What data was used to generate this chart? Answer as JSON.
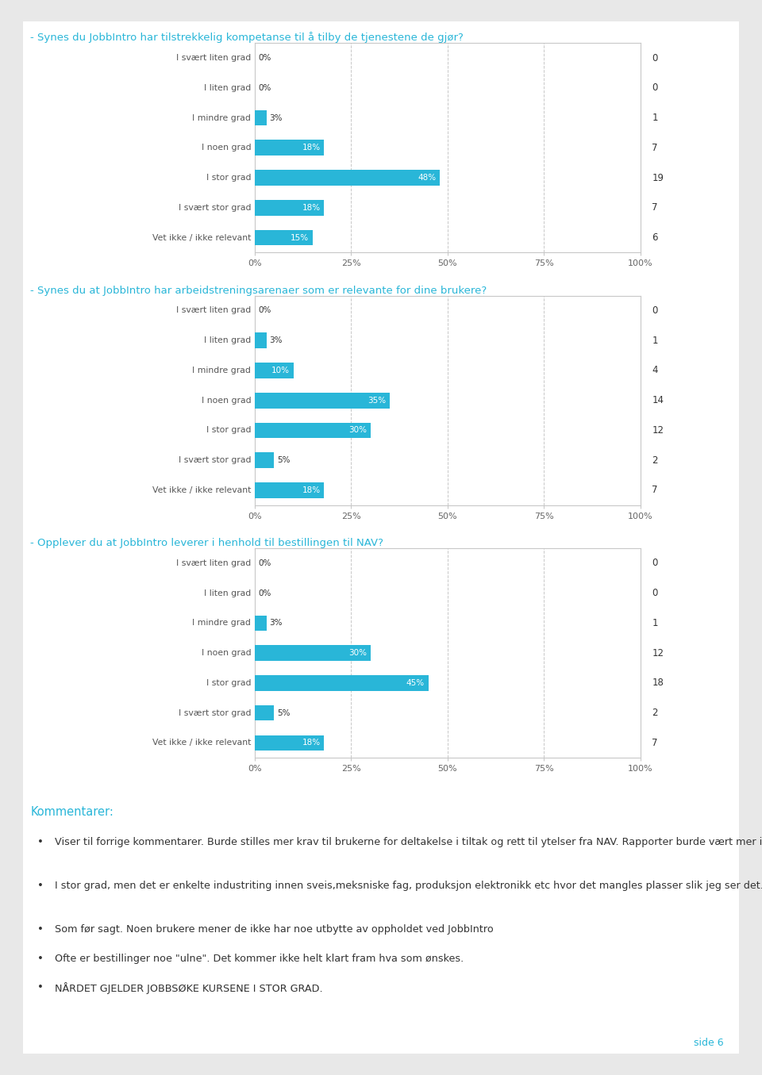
{
  "chart1": {
    "title": "- Synes du JobbIntro har tilstrekkelig kompetanse til å tilby de tjenestene de gjør?",
    "categories": [
      "I svært liten grad",
      "I liten grad",
      "I mindre grad",
      "I noen grad",
      "I stor grad",
      "I svært stor grad",
      "Vet ikke / ikke relevant"
    ],
    "values": [
      0,
      0,
      3,
      18,
      48,
      18,
      15
    ],
    "counts": [
      0,
      0,
      1,
      7,
      19,
      7,
      6
    ]
  },
  "chart2": {
    "title": "- Synes du at JobbIntro har arbeidstreningsarenaer som er relevante for dine brukere?",
    "categories": [
      "I svært liten grad",
      "I liten grad",
      "I mindre grad",
      "I noen grad",
      "I stor grad",
      "I svært stor grad",
      "Vet ikke / ikke relevant"
    ],
    "values": [
      0,
      3,
      10,
      35,
      30,
      5,
      18
    ],
    "counts": [
      0,
      1,
      4,
      14,
      12,
      2,
      7
    ]
  },
  "chart3": {
    "title": "- Opplever du at JobbIntro leverer i henhold til bestillingen til NAV?",
    "categories": [
      "I svært liten grad",
      "I liten grad",
      "I mindre grad",
      "I noen grad",
      "I stor grad",
      "I svært stor grad",
      "Vet ikke / ikke relevant"
    ],
    "values": [
      0,
      0,
      3,
      30,
      45,
      5,
      18
    ],
    "counts": [
      0,
      0,
      1,
      12,
      18,
      2,
      7
    ]
  },
  "bar_color": "#29b6d8",
  "title_color": "#29b6d8",
  "axis_label_color": "#555555",
  "count_color": "#333333",
  "grid_color": "#c8c8c8",
  "bg_color": "#ffffff",
  "page_bg": "#e8e8e8",
  "comments_title": "Kommentarer:",
  "comments_color": "#29b6d8",
  "comments": [
    "Viser til forrige kommentarer. Burde stilles mer krav til brukerne for deltakelse i tiltak og rett til ytelser fra NAV. Rapporter burde vært mer i samsvar med AEV.",
    "I stor grad, men det er enkelte industriting innen sveis,meksniske fag, produksjon elektronikk etc hvor det mangles plasser slik jeg ser det.",
    "Som før sagt. Noen brukere mener de ikke har noe utbytte av oppholdet ved JobbIntro",
    "Ofte er bestillinger noe \"ulne\". Det kommer ikke helt klart fram hva som ønskes.",
    "NÅRDET GJELDER JOBBSØKE KURSENE I STOR GRAD."
  ],
  "page_label": "side 6",
  "page_label_color": "#29b6d8"
}
